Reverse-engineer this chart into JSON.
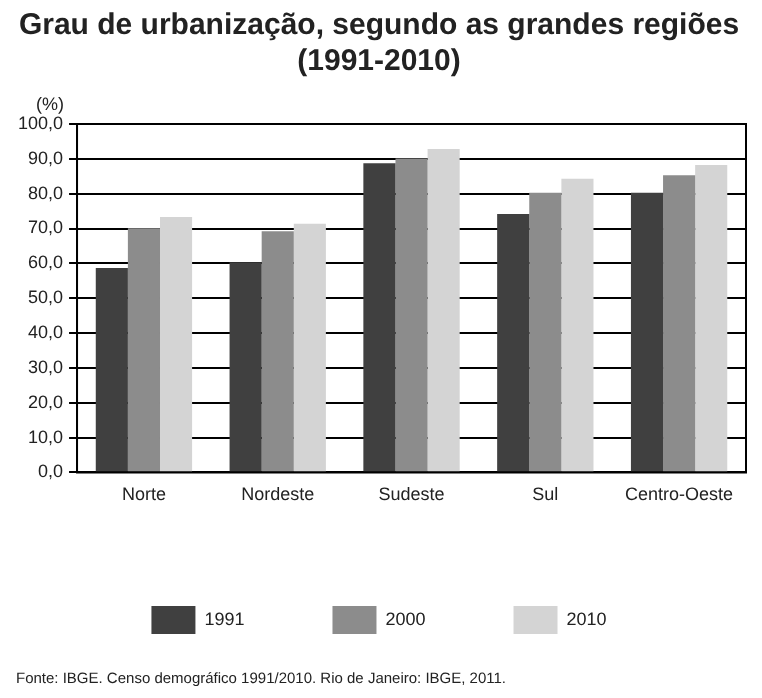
{
  "chart_data": {
    "type": "bar",
    "title": "Grau de urbanização, segundo as grandes regiões\n(1991-2010)",
    "ylabel": "(%)",
    "categories": [
      "Norte",
      "Nordeste",
      "Sudeste",
      "Sul",
      "Centro-Oeste"
    ],
    "series": [
      {
        "name": "1991",
        "color": "#404040",
        "values": [
          58.7,
          60.3,
          88.7,
          74.2,
          80.3
        ]
      },
      {
        "name": "2000",
        "color": "#8c8c8c",
        "values": [
          70.1,
          69.2,
          90.1,
          80.3,
          85.3
        ]
      },
      {
        "name": "2010",
        "color": "#d4d4d4",
        "values": [
          73.3,
          71.4,
          92.8,
          84.3,
          88.2
        ]
      }
    ],
    "ylim": [
      0,
      100
    ],
    "yticks": [
      {
        "value": 0,
        "label": "0,0"
      },
      {
        "value": 10,
        "label": "10,0"
      },
      {
        "value": 20,
        "label": "20,0"
      },
      {
        "value": 30,
        "label": "30,0"
      },
      {
        "value": 40,
        "label": "40,0"
      },
      {
        "value": 50,
        "label": "50,0"
      },
      {
        "value": 60,
        "label": "60,0"
      },
      {
        "value": 70,
        "label": "70,0"
      },
      {
        "value": 80,
        "label": "80,0"
      },
      {
        "value": 90,
        "label": "90,0"
      },
      {
        "value": 100,
        "label": "100,0"
      }
    ],
    "grid": "y",
    "legend": "bottom",
    "annotations": [
      "Fonte: IBGE. Censo demográfico 1991/2010. Rio de Janeiro: IBGE, 2011."
    ]
  }
}
